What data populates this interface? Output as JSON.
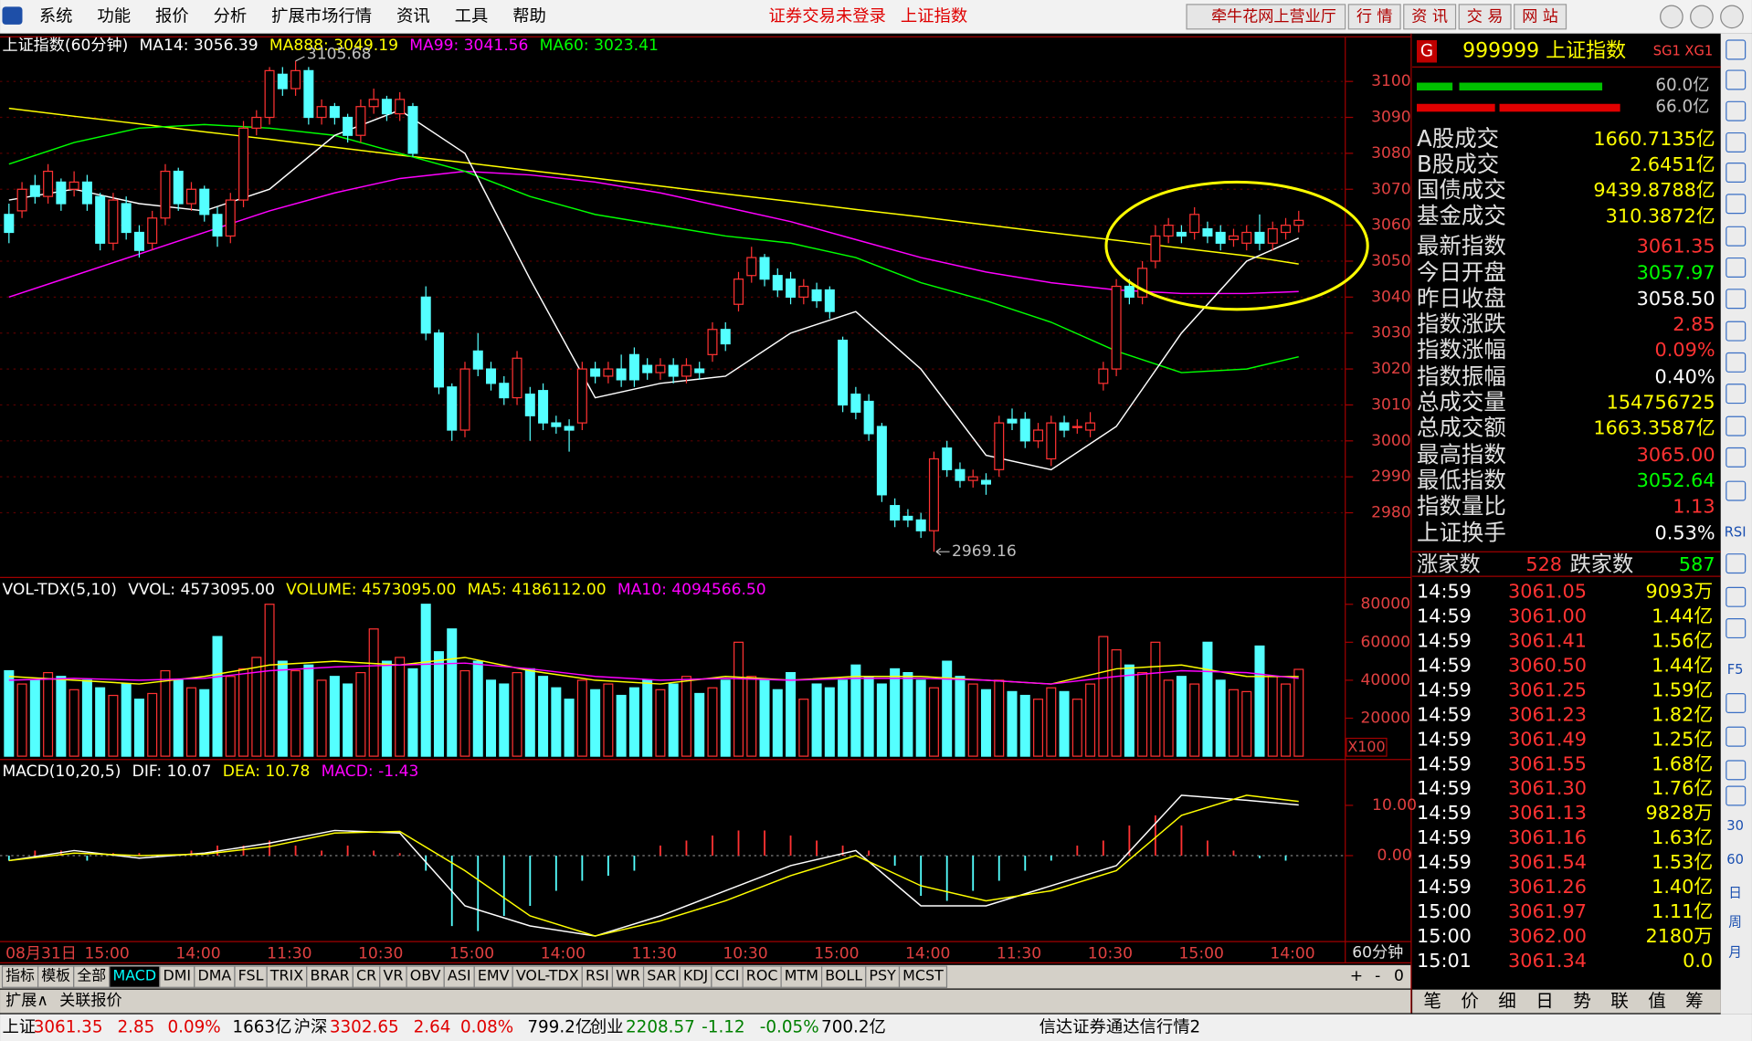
{
  "menu": [
    "系统",
    "功能",
    "报价",
    "分析",
    "扩展市场行情",
    "资讯",
    "工具",
    "帮助"
  ],
  "top_status": [
    "证券交易未登录",
    "上证指数"
  ],
  "top_buttons": [
    "牵牛花网上营业厅",
    "行 情",
    "资 讯",
    "交 易",
    "网 站"
  ],
  "price_chart": {
    "legend": [
      {
        "text": "上证指数(60分钟)",
        "color": "#ffffff"
      },
      {
        "text": "MA14: 3056.39",
        "color": "#ffffff"
      },
      {
        "text": "MA888: 3049.19",
        "color": "#ffff00"
      },
      {
        "text": "MA99: 3041.56",
        "color": "#ff00ff"
      },
      {
        "text": "MA60: 3023.41",
        "color": "#00ff00"
      }
    ],
    "ylim": [
      2962,
      3112.4
    ],
    "yticks": [
      3100,
      3090,
      3080,
      3070,
      3060,
      3050,
      3040,
      3030,
      3020,
      3010,
      3000,
      2990,
      2980
    ],
    "up_color": "#ff3232",
    "down_color": "#54ffff",
    "candles": [
      [
        3063,
        3058,
        3066,
        3055
      ],
      [
        3064,
        3070,
        3072,
        3062
      ],
      [
        3071,
        3068,
        3074,
        3066
      ],
      [
        3068,
        3075,
        3077,
        3066
      ],
      [
        3072,
        3066,
        3073,
        3064
      ],
      [
        3070,
        3072,
        3075,
        3068
      ],
      [
        3072,
        3066,
        3074,
        3064
      ],
      [
        3068,
        3055,
        3069,
        3053
      ],
      [
        3055,
        3067,
        3069,
        3053
      ],
      [
        3066,
        3058,
        3068,
        3056
      ],
      [
        3058,
        3053,
        3060,
        3051
      ],
      [
        3055,
        3062,
        3064,
        3053
      ],
      [
        3062,
        3075,
        3077,
        3060
      ],
      [
        3075,
        3066,
        3076,
        3064
      ],
      [
        3066,
        3070,
        3072,
        3064
      ],
      [
        3070,
        3063,
        3071,
        3061
      ],
      [
        3063,
        3057,
        3065,
        3054
      ],
      [
        3057,
        3067,
        3069,
        3055
      ],
      [
        3067,
        3087,
        3089,
        3065
      ],
      [
        3087,
        3090,
        3092,
        3085
      ],
      [
        3090,
        3103,
        3104,
        3088
      ],
      [
        3102,
        3098,
        3104,
        3096
      ],
      [
        3098,
        3103,
        3105.68,
        3096
      ],
      [
        3103,
        3090,
        3104,
        3088
      ],
      [
        3090,
        3093,
        3095,
        3088
      ],
      [
        3093,
        3090,
        3094,
        3088
      ],
      [
        3090,
        3085,
        3091,
        3083
      ],
      [
        3085,
        3093,
        3095,
        3083
      ],
      [
        3093,
        3095,
        3098,
        3091
      ],
      [
        3095,
        3091,
        3096,
        3089
      ],
      [
        3091,
        3095,
        3097,
        3089
      ],
      [
        3093,
        3080,
        3094,
        3079
      ],
      [
        3040,
        3030,
        3043,
        3028
      ],
      [
        3030,
        3015,
        3031,
        3013
      ],
      [
        3015,
        3003,
        3016,
        3000
      ],
      [
        3003,
        3020,
        3022,
        3001
      ],
      [
        3025,
        3020,
        3030,
        3018
      ],
      [
        3020,
        3016,
        3022,
        3014
      ],
      [
        3016,
        3012,
        3018,
        3010
      ],
      [
        3012,
        3023,
        3025,
        3010
      ],
      [
        3013,
        3007,
        3015,
        3000
      ],
      [
        3014,
        3005,
        3016,
        3003
      ],
      [
        3005,
        3004,
        3007,
        3002
      ],
      [
        3004,
        3003,
        3006,
        2997
      ],
      [
        3005,
        3020,
        3022,
        3003
      ],
      [
        3020,
        3018,
        3022,
        3016
      ],
      [
        3018,
        3020,
        3022,
        3016
      ],
      [
        3020,
        3017,
        3024,
        3015
      ],
      [
        3024,
        3017,
        3026,
        3015
      ],
      [
        3021,
        3019,
        3023,
        3017
      ],
      [
        3019,
        3021,
        3023,
        3017
      ],
      [
        3021,
        3018,
        3023,
        3016
      ],
      [
        3018,
        3021,
        3023,
        3016
      ],
      [
        3020,
        3019,
        3022,
        3017
      ],
      [
        3024,
        3031,
        3033,
        3022
      ],
      [
        3031,
        3027,
        3033,
        3025
      ],
      [
        3038,
        3045,
        3047,
        3036
      ],
      [
        3046,
        3051,
        3054,
        3044
      ],
      [
        3051,
        3045,
        3052,
        3043
      ],
      [
        3046,
        3042,
        3048,
        3040
      ],
      [
        3045,
        3040,
        3047,
        3038
      ],
      [
        3040,
        3043,
        3045,
        3038
      ],
      [
        3042,
        3039,
        3044,
        3037
      ],
      [
        3042,
        3036,
        3043,
        3034
      ],
      [
        3028,
        3010,
        3029,
        3008
      ],
      [
        3013,
        3008,
        3015,
        3006
      ],
      [
        3011,
        3002,
        3013,
        3000
      ],
      [
        3004,
        2985,
        3005,
        2983
      ],
      [
        2982,
        2978,
        2984,
        2976
      ],
      [
        2979,
        2978,
        2981,
        2976
      ],
      [
        2978,
        2975,
        2980,
        2973
      ],
      [
        2975,
        2995,
        2997,
        2969.16
      ],
      [
        2998,
        2992,
        3000,
        2990
      ],
      [
        2992,
        2989,
        2994,
        2987
      ],
      [
        2989,
        2990,
        2992,
        2987
      ],
      [
        2989,
        2988,
        2991,
        2985
      ],
      [
        2992,
        3005,
        3007,
        2990
      ],
      [
        3006,
        3005,
        3009,
        3003
      ],
      [
        3006,
        3000,
        3008,
        2998
      ],
      [
        3000,
        3003,
        3005,
        2998
      ],
      [
        2995,
        3005,
        3007,
        2993
      ],
      [
        3005,
        3003,
        3007,
        3001
      ],
      [
        3004,
        3004,
        3006,
        3002
      ],
      [
        3003,
        3005,
        3008,
        3001
      ],
      [
        3016,
        3020,
        3022,
        3014
      ],
      [
        3020,
        3043,
        3045,
        3018
      ],
      [
        3043,
        3040,
        3045,
        3038
      ],
      [
        3040,
        3048,
        3050,
        3038
      ],
      [
        3050,
        3057,
        3060,
        3048
      ],
      [
        3057,
        3060,
        3062,
        3055
      ],
      [
        3058,
        3057,
        3060,
        3055
      ],
      [
        3058,
        3063,
        3065,
        3056
      ],
      [
        3059,
        3057,
        3061,
        3055
      ],
      [
        3058,
        3055,
        3060,
        3053
      ],
      [
        3056,
        3057,
        3059,
        3054
      ],
      [
        3055,
        3058,
        3060,
        3053
      ],
      [
        3058,
        3055,
        3063,
        3053
      ],
      [
        3055,
        3059,
        3061,
        3053
      ],
      [
        3058,
        3060,
        3062,
        3056
      ],
      [
        3060,
        3061.35,
        3064,
        3058
      ]
    ],
    "high_annotation": 3105.68,
    "low_annotation": 2969.16,
    "line_x": [
      0,
      5,
      10,
      15,
      20,
      25,
      30,
      35,
      40,
      45,
      50,
      55,
      60,
      65,
      70,
      75,
      80,
      85,
      90,
      95,
      99
    ],
    "lines": [
      {
        "color": "#ffff00",
        "values": [
          3092.5,
          3090.3,
          3088.2,
          3086.0,
          3083.9,
          3081.7,
          3079.5,
          3077.4,
          3075.2,
          3073.1,
          3070.9,
          3068.7,
          3066.6,
          3064.4,
          3062.3,
          3060.1,
          3057.9,
          3055.8,
          3053.6,
          3051.5,
          3049.19
        ]
      },
      {
        "color": "#ff00ff",
        "values": [
          3040,
          3046,
          3052,
          3058,
          3064,
          3069,
          3073,
          3075,
          3074,
          3072,
          3069,
          3065,
          3061,
          3056,
          3051,
          3047,
          3044,
          3042,
          3041,
          3041,
          3041.56
        ]
      },
      {
        "color": "#00ff00",
        "values": [
          3077,
          3083,
          3087,
          3088,
          3087,
          3085,
          3080,
          3075,
          3068,
          3063,
          3060,
          3057,
          3055,
          3051,
          3044,
          3039,
          3033,
          3025,
          3019,
          3020,
          3023.41
        ]
      },
      {
        "color": "#ffffff",
        "values": [
          3067,
          3070,
          3066,
          3064,
          3070,
          3085,
          3092,
          3080,
          3045,
          3012,
          3016,
          3018,
          3030,
          3036,
          3020,
          2996,
          2992,
          3004,
          3030,
          3050,
          3056.39
        ]
      }
    ]
  },
  "time_axis": {
    "labels": [
      "08月31日",
      "15:00",
      "14:00",
      "11:30",
      "10:30",
      "15:00",
      "14:00",
      "11:30",
      "10:30",
      "15:00",
      "14:00",
      "11:30",
      "10:30",
      "15:00",
      "14:00"
    ],
    "period": "60分钟"
  },
  "volume_chart": {
    "legend": [
      {
        "text": "VOL-TDX(5,10)",
        "color": "#ffffff"
      },
      {
        "text": "VVOL: 4573095.00",
        "color": "#ffffff"
      },
      {
        "text": "VOLUME: 4573095.00",
        "color": "#ffff00"
      },
      {
        "text": "MA5: 4186112.00",
        "color": "#ffff00"
      },
      {
        "text": "MA10: 4094566.50",
        "color": "#ff00ff"
      }
    ],
    "ylim": [
      0,
      93529
    ],
    "yticks": [
      80000,
      60000,
      40000,
      20000
    ],
    "unit": "X100",
    "values": [
      45000,
      38000,
      40000,
      44000,
      42000,
      35000,
      40000,
      36000,
      32000,
      38000,
      30000,
      33000,
      45000,
      40000,
      36000,
      35000,
      63000,
      42000,
      46000,
      52000,
      80000,
      50000,
      45000,
      48000,
      40000,
      42000,
      38000,
      44000,
      67000,
      50000,
      52000,
      46000,
      80000,
      55000,
      67000,
      45000,
      50000,
      40000,
      38000,
      44000,
      46000,
      42000,
      36000,
      30000,
      40000,
      35000,
      38000,
      32000,
      36000,
      40000,
      35000,
      38000,
      42000,
      33000,
      36000,
      40000,
      60000,
      42000,
      40000,
      35000,
      44000,
      30000,
      38000,
      36000,
      40000,
      48000,
      42000,
      38000,
      46000,
      44000,
      40000,
      36000,
      50000,
      42000,
      38000,
      35000,
      40000,
      34000,
      32000,
      30000,
      36000,
      34000,
      30000,
      38000,
      63000,
      56000,
      48000,
      44000,
      60000,
      40000,
      42000,
      38000,
      60000,
      40000,
      35000,
      34000,
      58000,
      42000,
      38000,
      45730.95
    ],
    "line_x": [
      0,
      5,
      10,
      15,
      20,
      25,
      30,
      35,
      40,
      45,
      50,
      55,
      60,
      65,
      70,
      75,
      80,
      85,
      90,
      95,
      99
    ],
    "lines": [
      {
        "color": "#ffff00",
        "values": [
          42000,
          40000,
          38000,
          42000,
          48000,
          50000,
          48000,
          52000,
          45000,
          40000,
          38000,
          42000,
          40000,
          42000,
          42000,
          40000,
          38000,
          46000,
          48000,
          42000,
          41861.12
        ]
      },
      {
        "color": "#ff00ff",
        "values": [
          40000,
          41000,
          40000,
          41000,
          45000,
          47000,
          48000,
          49000,
          46000,
          42000,
          40000,
          41000,
          40000,
          41000,
          41000,
          40000,
          38000,
          42000,
          45000,
          44000,
          40945.67
        ]
      }
    ]
  },
  "macd_chart": {
    "legend": [
      {
        "text": "MACD(10,20,5)",
        "color": "#ffffff"
      },
      {
        "text": "DIF: 10.07",
        "color": "#ffffff"
      },
      {
        "text": "DEA: 10.78",
        "color": "#ffff00"
      },
      {
        "text": "MACD: -1.43",
        "color": "#ff00ff"
      }
    ],
    "ylim": [
      -17.1,
      18.67
    ],
    "yticks": [
      {
        "value": 10,
        "label": "10.00"
      },
      {
        "value": 0,
        "label": "0.00"
      }
    ],
    "bars": [
      -1,
      1,
      1,
      -1,
      0.5,
      0.5,
      0,
      1,
      2,
      2,
      3,
      2,
      1,
      2,
      1,
      0.5,
      -3,
      -14,
      -15,
      -12,
      -10,
      -7,
      -5,
      -4,
      -3,
      2,
      3,
      4,
      5,
      5,
      4,
      3,
      2,
      1,
      -2,
      -8,
      -9,
      -7,
      -5,
      -3,
      -1,
      2,
      3,
      6,
      8,
      6,
      3,
      1,
      -0.5,
      -1
    ],
    "line_x": [
      0,
      5,
      10,
      15,
      20,
      25,
      30,
      35,
      40,
      45,
      50,
      55,
      60,
      65,
      70,
      75,
      80,
      85,
      90,
      95,
      99
    ],
    "lines": [
      {
        "color": "#ffffff",
        "values": [
          -1,
          1,
          -0.5,
          0.5,
          2.5,
          5,
          4.5,
          -10,
          -14,
          -16,
          -12,
          -7,
          -2,
          1,
          -10,
          -10,
          -6,
          -2,
          12,
          11,
          10.07
        ]
      },
      {
        "color": "#ffff00",
        "values": [
          -1,
          0.5,
          0,
          0.3,
          1.8,
          4.5,
          4.8,
          -3,
          -12,
          -16,
          -13,
          -9,
          -4,
          0,
          -6,
          -9,
          -7,
          -3,
          8,
          12,
          10.78
        ]
      }
    ]
  },
  "indicator_tabs": [
    "指标",
    "模板",
    "全部",
    "MACD",
    "DMI",
    "DMA",
    "FSL",
    "TRIX",
    "BRAR",
    "CR",
    "VR",
    "OBV",
    "ASI",
    "EMV",
    "VOL-TDX",
    "RSI",
    "WR",
    "SAR",
    "KDJ",
    "CCI",
    "ROC",
    "MTM",
    "BOLL",
    "PSY",
    "MCST"
  ],
  "scroll_buttons": [
    "+",
    "-",
    "0"
  ],
  "bottom_tabs": [
    "扩展∧",
    "关联报价"
  ],
  "panel": {
    "badge": "G",
    "code_name": "999999 上证指数",
    "flags": "SG1 XG1",
    "bar_labels": [
      "60.0亿",
      "66.0亿"
    ],
    "stats": [
      {
        "label": "A股成交",
        "value": "1660.7135亿",
        "color": "#ffff00"
      },
      {
        "label": "B股成交",
        "value": "2.6451亿",
        "color": "#ffff00"
      },
      {
        "label": "国债成交",
        "value": "9439.8788亿",
        "color": "#ffff00"
      },
      {
        "label": "基金成交",
        "value": "310.3872亿",
        "color": "#ffff00"
      },
      {
        "label": "最新指数",
        "value": "3061.35",
        "color": "#ff3232"
      },
      {
        "label": "今日开盘",
        "value": "3057.97",
        "color": "#00ff00"
      },
      {
        "label": "昨日收盘",
        "value": "3058.50",
        "color": "#ffffff"
      },
      {
        "label": "指数涨跌",
        "value": "2.85",
        "color": "#ff3232"
      },
      {
        "label": "指数涨幅",
        "value": "0.09%",
        "color": "#ff3232"
      },
      {
        "label": "指数振幅",
        "value": "0.40%",
        "color": "#ffffff"
      },
      {
        "label": "总成交量",
        "value": "154756725",
        "color": "#ffff00"
      },
      {
        "label": "总成交额",
        "value": "1663.3587亿",
        "color": "#ffff00"
      },
      {
        "label": "最高指数",
        "value": "3065.00",
        "color": "#ff3232"
      },
      {
        "label": "最低指数",
        "value": "3052.64",
        "color": "#00ff00"
      },
      {
        "label": "指数量比",
        "value": "1.13",
        "color": "#ff3232"
      },
      {
        "label": "上证换手",
        "value": "0.53%",
        "color": "#ffffff"
      }
    ],
    "breadth": [
      "涨家数",
      "528",
      "跌家数",
      "587"
    ],
    "ticks": [
      [
        "14:59",
        "3061.05",
        "9093万"
      ],
      [
        "14:59",
        "3061.00",
        "1.44亿"
      ],
      [
        "14:59",
        "3061.41",
        "1.56亿"
      ],
      [
        "14:59",
        "3060.50",
        "1.44亿"
      ],
      [
        "14:59",
        "3061.25",
        "1.59亿"
      ],
      [
        "14:59",
        "3061.23",
        "1.82亿"
      ],
      [
        "14:59",
        "3061.49",
        "1.25亿"
      ],
      [
        "14:59",
        "3061.55",
        "1.68亿"
      ],
      [
        "14:59",
        "3061.30",
        "1.76亿"
      ],
      [
        "14:59",
        "3061.13",
        "9828万"
      ],
      [
        "14:59",
        "3061.16",
        "1.63亿"
      ],
      [
        "14:59",
        "3061.54",
        "1.53亿"
      ],
      [
        "14:59",
        "3061.26",
        "1.40亿"
      ],
      [
        "15:00",
        "3061.97",
        "1.11亿"
      ],
      [
        "15:00",
        "3062.00",
        "2180万"
      ],
      [
        "15:01",
        "3061.34",
        "0.0"
      ]
    ],
    "tabs": [
      "笔",
      "价",
      "细",
      "日",
      "势",
      "联",
      "值",
      "筹"
    ]
  },
  "side_icons": [
    "RSI",
    "F5",
    "30",
    "60",
    "日",
    "周",
    "月"
  ],
  "status_bar": [
    "上证",
    "3061.35",
    "2.85",
    "0.09%",
    "1663亿",
    "沪深",
    "3302.65",
    "2.64",
    "0.08%",
    "799.2亿",
    "创业",
    "2208.57",
    "-1.12",
    "-0.05%",
    "700.2亿",
    "信达证券通达信行情2"
  ]
}
